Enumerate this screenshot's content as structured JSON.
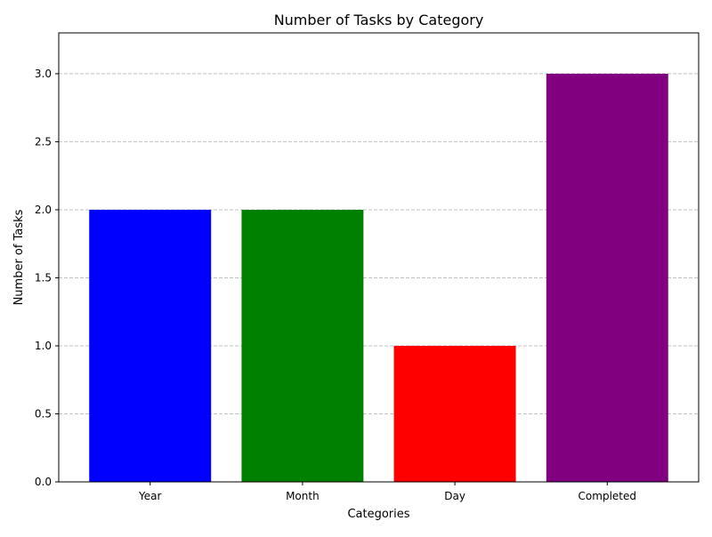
{
  "chart_data": {
    "type": "bar",
    "title": "Number of Tasks by Category",
    "xlabel": "Categories",
    "ylabel": "Number of Tasks",
    "categories": [
      "Year",
      "Month",
      "Day",
      "Completed"
    ],
    "values": [
      2,
      1.9999,
      1,
      3
    ],
    "bar_colors": [
      "#0000ff",
      "#008000",
      "#ff0000",
      "#800080"
    ],
    "ylim": [
      0,
      3.3
    ],
    "yticks": [
      0,
      0.5,
      1,
      1.5,
      2,
      2.5,
      3
    ],
    "ytick_labels": [
      "0.0",
      "0.5",
      "1.0",
      "1.5",
      "2.0",
      "2.5",
      "3.0"
    ],
    "grid": {
      "axis": "y",
      "style": "dashed",
      "color": "#c0c0c0"
    },
    "legend": "none"
  }
}
